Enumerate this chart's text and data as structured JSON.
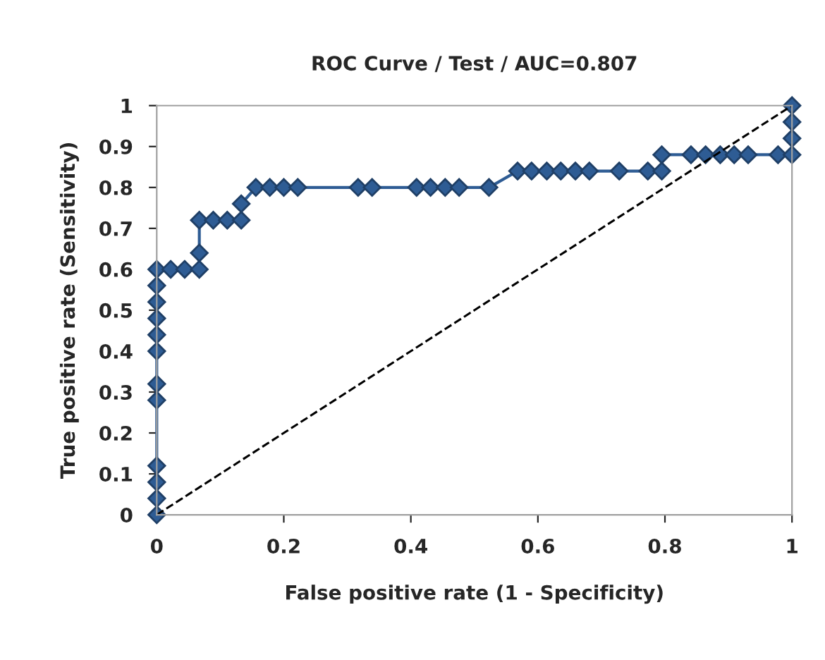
{
  "chart_data": {
    "type": "line",
    "title": "ROC Curve / Test / AUC=0.807",
    "xlabel": "False positive rate (1 - Specificity)",
    "ylabel": "True positive rate (Sensitivity)",
    "xlim": [
      0,
      1
    ],
    "ylim": [
      0,
      1
    ],
    "xticks": [
      0,
      0.2,
      0.4,
      0.6,
      0.8,
      1
    ],
    "yticks": [
      0,
      0.1,
      0.2,
      0.3,
      0.4,
      0.5,
      0.6,
      0.7,
      0.8,
      0.9,
      1
    ],
    "grid": false,
    "series": [
      {
        "color": "#2e5c94",
        "marker": "diamond",
        "line_style": "solid",
        "x": [
          0,
          0,
          0,
          0,
          0,
          0,
          0,
          0,
          0,
          0,
          0,
          0,
          0.022,
          0.044,
          0.067,
          0.067,
          0.067,
          0.089,
          0.111,
          0.133,
          0.133,
          0.156,
          0.178,
          0.2,
          0.222,
          0.317,
          0.339,
          0.409,
          0.431,
          0.454,
          0.476,
          0.523,
          0.568,
          0.59,
          0.614,
          0.636,
          0.659,
          0.681,
          0.728,
          0.773,
          0.795,
          0.795,
          0.841,
          0.864,
          0.887,
          0.909,
          0.931,
          0.978,
          1,
          1,
          1,
          1
        ],
        "values": [
          0,
          0.04,
          0.08,
          0.12,
          0.28,
          0.32,
          0.4,
          0.44,
          0.48,
          0.52,
          0.56,
          0.6,
          0.6,
          0.6,
          0.6,
          0.64,
          0.72,
          0.72,
          0.72,
          0.72,
          0.76,
          0.8,
          0.8,
          0.8,
          0.8,
          0.8,
          0.8,
          0.8,
          0.8,
          0.8,
          0.8,
          0.8,
          0.84,
          0.84,
          0.84,
          0.84,
          0.84,
          0.84,
          0.84,
          0.84,
          0.84,
          0.88,
          0.88,
          0.88,
          0.88,
          0.88,
          0.88,
          0.88,
          0.88,
          0.92,
          0.96,
          1
        ]
      },
      {
        "color": "#000000",
        "marker": "none",
        "line_style": "dashed",
        "x": [
          0,
          1
        ],
        "values": [
          0,
          1
        ]
      }
    ]
  }
}
